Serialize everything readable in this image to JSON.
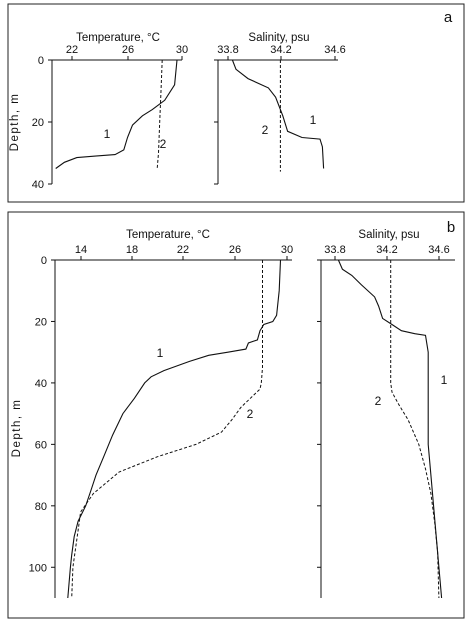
{
  "chart_data": [
    {
      "panel": "a",
      "type": "line",
      "title": "",
      "panel_label": "a",
      "ylabel": "Depth, m",
      "y_ticks": [
        "0",
        "20",
        "40"
      ],
      "ylim": [
        0,
        40
      ],
      "y_inverted": true,
      "subplots": [
        {
          "key": "temp",
          "xlabel": "Temperature, °C",
          "x_ticks": [
            "22",
            "26",
            "30"
          ],
          "xlim": [
            19.5,
            30
          ],
          "series": [
            {
              "curve_label": "1",
              "style": "solid",
              "points": [
                [
                  29.6,
                  0
                ],
                [
                  29.4,
                  8
                ],
                [
                  28.6,
                  13
                ],
                [
                  27.6,
                  16
                ],
                [
                  26.8,
                  18
                ],
                [
                  26.0,
                  21
                ],
                [
                  25.6,
                  25
                ],
                [
                  25.3,
                  29
                ],
                [
                  24.6,
                  30.5
                ],
                [
                  23.0,
                  31
                ],
                [
                  21.5,
                  31.5
                ],
                [
                  20.5,
                  33
                ],
                [
                  19.8,
                  35
                ]
              ]
            },
            {
              "curve_label": "2",
              "style": "dashed",
              "points": [
                [
                  28.4,
                  0
                ],
                [
                  28.3,
                  10
                ],
                [
                  28.2,
                  20
                ],
                [
                  28.1,
                  30
                ],
                [
                  28.0,
                  35
                ]
              ]
            }
          ]
        },
        {
          "key": "sal",
          "xlabel": "Salinity, psu",
          "x_ticks": [
            "33.8",
            "34.2",
            "34.6"
          ],
          "xlim": [
            33.7,
            34.7
          ],
          "series": [
            {
              "curve_label": "1",
              "style": "solid",
              "points": [
                [
                  33.82,
                  0
                ],
                [
                  33.85,
                  3
                ],
                [
                  33.95,
                  6
                ],
                [
                  34.12,
                  9
                ],
                [
                  34.18,
                  12
                ],
                [
                  34.24,
                  18
                ],
                [
                  34.28,
                  23
                ],
                [
                  34.4,
                  25
                ],
                [
                  34.55,
                  25.5
                ],
                [
                  34.57,
                  28
                ],
                [
                  34.58,
                  35
                ]
              ]
            },
            {
              "curve_label": "2",
              "style": "dashed",
              "points": [
                [
                  34.22,
                  0
                ],
                [
                  34.22,
                  10
                ],
                [
                  34.22,
                  20
                ],
                [
                  34.22,
                  30
                ],
                [
                  34.22,
                  36
                ]
              ]
            }
          ]
        }
      ]
    },
    {
      "panel": "b",
      "type": "line",
      "title": "",
      "panel_label": "b",
      "ylabel": "Depth, m",
      "y_ticks": [
        "0",
        "20",
        "40",
        "60",
        "80",
        "100"
      ],
      "ylim": [
        0,
        110
      ],
      "y_inverted": true,
      "subplots": [
        {
          "key": "temp",
          "xlabel": "Temperature, °C",
          "x_ticks": [
            "14",
            "18",
            "22",
            "26",
            "30"
          ],
          "xlim": [
            12,
            30.5
          ],
          "series": [
            {
              "curve_label": "1",
              "style": "solid",
              "points": [
                [
                  29.6,
                  0
                ],
                [
                  29.5,
                  10
                ],
                [
                  29.3,
                  18
                ],
                [
                  29.0,
                  20
                ],
                [
                  28.3,
                  21
                ],
                [
                  28.0,
                  23
                ],
                [
                  27.8,
                  26
                ],
                [
                  27.1,
                  27
                ],
                [
                  26.9,
                  29
                ],
                [
                  25.5,
                  30
                ],
                [
                  24.0,
                  31
                ],
                [
                  22.5,
                  33
                ],
                [
                  20.5,
                  36
                ],
                [
                  19.5,
                  38
                ],
                [
                  19.0,
                  40
                ],
                [
                  18.2,
                  45
                ],
                [
                  17.3,
                  50
                ],
                [
                  16.5,
                  57
                ],
                [
                  15.8,
                  64
                ],
                [
                  15.2,
                  70
                ],
                [
                  14.8,
                  75
                ],
                [
                  14.4,
                  80
                ],
                [
                  13.8,
                  85
                ],
                [
                  13.5,
                  90
                ],
                [
                  13.3,
                  96
                ],
                [
                  13.2,
                  100
                ],
                [
                  13.0,
                  110
                ]
              ]
            },
            {
              "curve_label": "2",
              "style": "dashed",
              "points": [
                [
                  28.2,
                  0
                ],
                [
                  28.2,
                  20
                ],
                [
                  28.2,
                  30
                ],
                [
                  28.2,
                  35
                ],
                [
                  28.1,
                  40
                ],
                [
                  28.0,
                  42
                ],
                [
                  27.0,
                  46
                ],
                [
                  26.5,
                  48
                ],
                [
                  25.8,
                  52
                ],
                [
                  25.0,
                  56
                ],
                [
                  23.0,
                  60
                ],
                [
                  20.0,
                  64
                ],
                [
                  17.0,
                  69
                ],
                [
                  15.0,
                  76
                ],
                [
                  14.0,
                  82
                ],
                [
                  13.8,
                  88
                ],
                [
                  13.6,
                  94
                ],
                [
                  13.4,
                  100
                ],
                [
                  13.3,
                  110
                ]
              ]
            }
          ]
        },
        {
          "key": "sal",
          "xlabel": "Salinity, psu",
          "x_ticks": [
            "33.8",
            "34.2",
            "34.6"
          ],
          "xlim": [
            33.7,
            34.7
          ],
          "series": [
            {
              "curve_label": "1",
              "style": "solid",
              "points": [
                [
                  33.83,
                  0
                ],
                [
                  33.86,
                  3
                ],
                [
                  33.93,
                  5
                ],
                [
                  34.0,
                  8
                ],
                [
                  34.1,
                  12
                ],
                [
                  34.13,
                  15
                ],
                [
                  34.16,
                  19
                ],
                [
                  34.23,
                  21
                ],
                [
                  34.3,
                  23
                ],
                [
                  34.4,
                  24
                ],
                [
                  34.48,
                  24.5
                ],
                [
                  34.5,
                  30
                ],
                [
                  34.5,
                  40
                ],
                [
                  34.5,
                  60
                ],
                [
                  34.52,
                  70
                ],
                [
                  34.55,
                  85
                ],
                [
                  34.58,
                  100
                ],
                [
                  34.6,
                  110
                ]
              ]
            },
            {
              "curve_label": "2",
              "style": "dashed",
              "points": [
                [
                  34.22,
                  0
                ],
                [
                  34.22,
                  10
                ],
                [
                  34.22,
                  20
                ],
                [
                  34.22,
                  30
                ],
                [
                  34.22,
                  40
                ],
                [
                  34.23,
                  43
                ],
                [
                  34.28,
                  47
                ],
                [
                  34.35,
                  52
                ],
                [
                  34.43,
                  60
                ],
                [
                  34.48,
                  68
                ],
                [
                  34.52,
                  76
                ],
                [
                  34.55,
                  86
                ],
                [
                  34.57,
                  95
                ],
                [
                  34.58,
                  110
                ]
              ]
            }
          ]
        }
      ]
    }
  ]
}
